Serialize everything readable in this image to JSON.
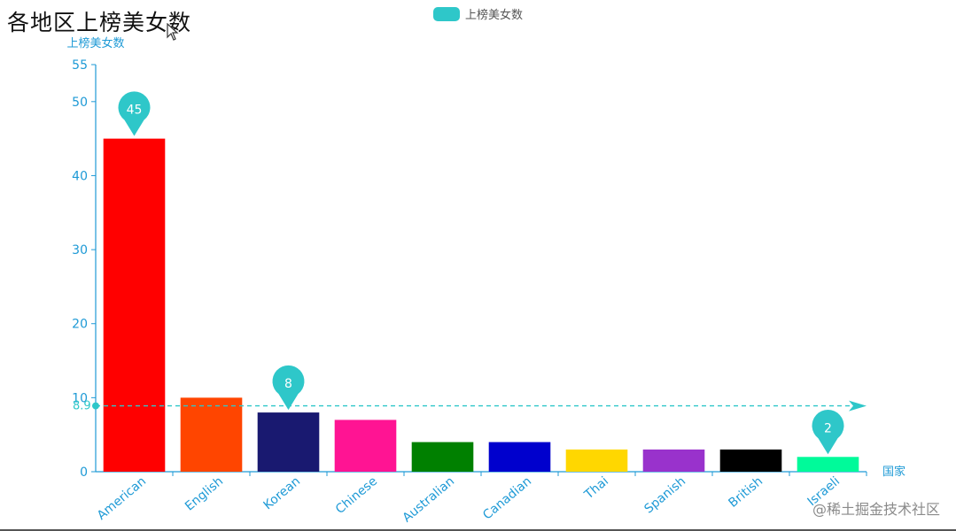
{
  "chart_data": {
    "type": "bar",
    "title": "各地区上榜美女数",
    "ylabel": "上榜美女数",
    "xlabel": "国家",
    "legend": [
      "上榜美女数"
    ],
    "legend_position": "top-center",
    "categories": [
      "American",
      "English",
      "Korean",
      "Chinese",
      "Australian",
      "Canadian",
      "Thai",
      "Spanish",
      "British",
      "Israeli"
    ],
    "series": [
      {
        "name": "上榜美女数",
        "values": [
          45,
          10,
          8,
          7,
          4,
          4,
          3,
          3,
          3,
          2
        ]
      }
    ],
    "bar_colors": [
      "#ff0000",
      "#ff4500",
      "#191970",
      "#ff1493",
      "#008000",
      "#0000cd",
      "#ffd700",
      "#9932cc",
      "#000000",
      "#00fa9a"
    ],
    "ylim": [
      0,
      55
    ],
    "yticks": [
      "0",
      "10",
      "20",
      "30",
      "40",
      "50",
      "55"
    ],
    "grid": false,
    "mark_points": [
      {
        "category": "American",
        "label": "45"
      },
      {
        "category": "Korean",
        "label": "8"
      },
      {
        "category": "Israeli",
        "label": "2"
      }
    ],
    "mark_line": {
      "label": "8.9",
      "value": 8.9
    },
    "axis_color": "#1e9ad6",
    "mark_color": "#2ec7c9",
    "legend_color": "#2ec7c9"
  },
  "watermark": "@稀土掘金技术社区",
  "cursor": "mouse-pointer-icon"
}
